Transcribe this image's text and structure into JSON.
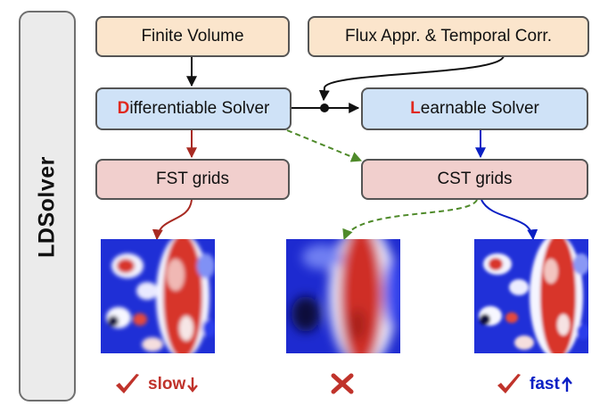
{
  "sidebar": {
    "title": "LDSolver"
  },
  "boxes": {
    "finite_volume": "Finite Volume",
    "flux": "Flux Appr. & Temporal Corr.",
    "diff_solver_initial": "D",
    "diff_solver_rest": "ifferentiable Solver",
    "learn_solver_initial": "L",
    "learn_solver_rest": "earnable Solver",
    "fst_grids": "FST grids",
    "cst_grids": "CST grids"
  },
  "results": {
    "left_label": "slow",
    "right_label": "fast"
  },
  "colors": {
    "red": "#c0332b",
    "blue": "#0a1fc4",
    "green": "#4f8a2a",
    "black": "#111111"
  }
}
